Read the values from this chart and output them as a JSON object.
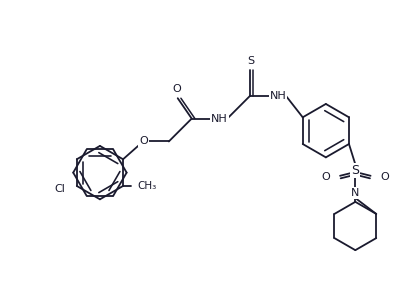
{
  "bg_color": "#ffffff",
  "line_color": "#1a1a2e",
  "line_width": 1.3,
  "font_size": 8.0,
  "figsize": [
    4.16,
    2.88
  ],
  "dpi": 100,
  "xlim": [
    0.0,
    6.5
  ],
  "ylim": [
    -1.2,
    3.2
  ]
}
